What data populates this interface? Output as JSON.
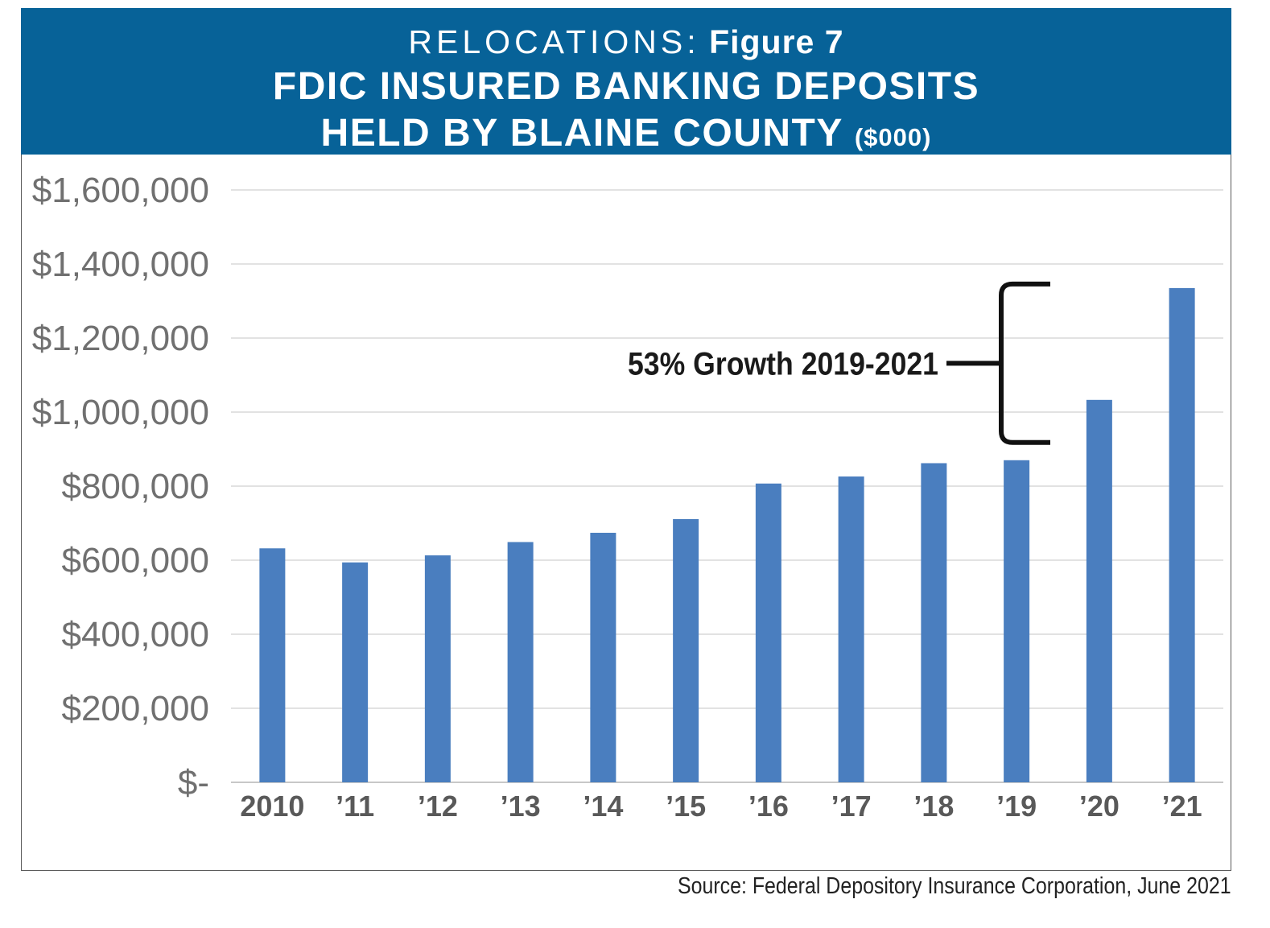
{
  "header": {
    "kicker": "RELOCATIONS:",
    "figure": "Figure 7",
    "title_line1": "FDIC INSURED BANKING DEPOSITS",
    "title_line2": "HELD BY BLAINE COUNTY",
    "units": "($000)",
    "background_color": "#076298"
  },
  "chart_data": {
    "type": "bar",
    "title": "FDIC INSURED BANKING DEPOSITS HELD BY BLAINE COUNTY",
    "categories": [
      "2010",
      "’11",
      "’12",
      "’13",
      "’14",
      "’15",
      "’16",
      "’17",
      "’18",
      "’19",
      "’20",
      "’21"
    ],
    "series": [
      {
        "values": [
          632000,
          594000,
          613000,
          649000,
          674000,
          711000,
          807000,
          826000,
          862000,
          870000,
          1033000,
          1335000
        ]
      }
    ],
    "y_ticks": [
      0,
      200000,
      400000,
      600000,
      800000,
      1000000,
      1200000,
      1400000,
      1600000
    ],
    "y_tick_labels": [
      "$-",
      "$200,000",
      "$400,000",
      "$600,000",
      "$800,000",
      "$1,000,000",
      "$1,200,000",
      "$1,400,000",
      "$1,600,000"
    ],
    "ylim": [
      0,
      1600000
    ],
    "grid": true,
    "bar_color": "#4a7ebf",
    "annotation": {
      "text": "53% Growth 2019-2021",
      "from_category": "’19",
      "to_category": "’21"
    }
  },
  "source": "Source:  Federal Depository Insurance Corporation, June 2021"
}
